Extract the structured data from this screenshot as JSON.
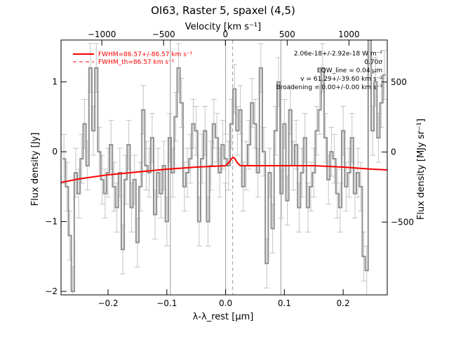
{
  "chart_data": {
    "type": "line",
    "title": "OI63, Raster 5, spaxel (4,5)",
    "xlabel": "λ-λ_rest [μm]",
    "ylabel": "Flux density [Jy]",
    "top_xlabel": "Velocity [km s⁻¹]",
    "right_ylabel": "Flux density [MJy sr⁻¹]",
    "xlim": [
      -0.28,
      0.275
    ],
    "ylim": [
      -2.05,
      1.6
    ],
    "top_xlim": [
      -1330,
      1310
    ],
    "right_ylim": [
      -1020,
      800
    ],
    "x_ticks": [
      -0.2,
      -0.1,
      0.0,
      0.1,
      0.2
    ],
    "x_tick_labels": [
      "−0.2",
      "−0.1",
      "0.0",
      "0.1",
      "0.2"
    ],
    "y_ticks": [
      -2,
      -1,
      0,
      1
    ],
    "y_tick_labels": [
      "−2",
      "−1",
      "0",
      "1"
    ],
    "top_ticks": [
      -1000,
      -500,
      0,
      500,
      1000
    ],
    "top_tick_labels": [
      "−1000",
      "−500",
      "0",
      "500",
      "1000"
    ],
    "right_ticks": [
      -500,
      0,
      500
    ],
    "right_tick_labels": [
      "−500",
      "0",
      "500"
    ],
    "vertical_lines": [
      {
        "x": -0.094,
        "style": "solid"
      },
      {
        "x": 0.0,
        "style": "solid"
      },
      {
        "x": 0.094,
        "style": "solid"
      },
      {
        "x": 0.012,
        "style": "dashed"
      }
    ],
    "legend": [
      {
        "label": "FWHM=86.57+/-86.57 km s⁻¹",
        "style": "solid",
        "color": "#ff0000"
      },
      {
        "label": "FWHM_th=86.57 km s⁻¹",
        "style": "dashed",
        "color": "#ff0000"
      }
    ],
    "annotations": [
      "2.06e-18+/-2.92e-18 W m⁻²",
      "0.70σ",
      "EQW_line = 0.04 μm",
      "v = 61.29+/-39.60 km s⁻¹",
      "Broadening = 0.00+/-0.00 km s⁻¹"
    ],
    "series": [
      {
        "style": "steps",
        "color": "#909090",
        "x": [
          -0.275,
          -0.27,
          -0.265,
          -0.26,
          -0.255,
          -0.25,
          -0.245,
          -0.24,
          -0.235,
          -0.23,
          -0.225,
          -0.22,
          -0.215,
          -0.21,
          -0.205,
          -0.2,
          -0.195,
          -0.19,
          -0.185,
          -0.18,
          -0.175,
          -0.17,
          -0.165,
          -0.16,
          -0.155,
          -0.15,
          -0.145,
          -0.14,
          -0.135,
          -0.13,
          -0.125,
          -0.12,
          -0.115,
          -0.11,
          -0.105,
          -0.1,
          -0.095,
          -0.09,
          -0.085,
          -0.08,
          -0.075,
          -0.07,
          -0.065,
          -0.06,
          -0.055,
          -0.05,
          -0.045,
          -0.04,
          -0.035,
          -0.03,
          -0.025,
          -0.02,
          -0.015,
          -0.01,
          -0.005,
          0.0,
          0.005,
          0.01,
          0.015,
          0.02,
          0.025,
          0.03,
          0.035,
          0.04,
          0.045,
          0.05,
          0.055,
          0.06,
          0.065,
          0.07,
          0.075,
          0.08,
          0.085,
          0.09,
          0.095,
          0.1,
          0.105,
          0.11,
          0.115,
          0.12,
          0.125,
          0.13,
          0.135,
          0.14,
          0.145,
          0.15,
          0.155,
          0.16,
          0.165,
          0.17,
          0.175,
          0.18,
          0.185,
          0.19,
          0.195,
          0.2,
          0.205,
          0.21,
          0.215,
          0.22,
          0.225,
          0.23,
          0.235,
          0.24,
          0.245,
          0.25,
          0.255,
          0.26,
          0.265,
          0.27
        ],
        "values": [
          -0.1,
          -0.5,
          -1.2,
          -2.0,
          -0.3,
          -0.6,
          -0.1,
          0.4,
          -0.2,
          1.2,
          0.3,
          1.2,
          0.0,
          -0.4,
          -0.6,
          -0.3,
          0.1,
          -0.5,
          -0.8,
          -0.3,
          -1.4,
          -0.4,
          0.1,
          -0.8,
          -0.4,
          -1.3,
          -0.5,
          0.6,
          -0.2,
          -0.3,
          0.2,
          -0.9,
          -0.3,
          -0.6,
          -0.2,
          -1.0,
          0.2,
          -0.3,
          0.5,
          1.2,
          0.7,
          -0.5,
          -0.3,
          -0.1,
          0.4,
          0.3,
          -1.0,
          -0.1,
          0.3,
          -1.0,
          -0.2,
          0.4,
          0.2,
          -0.3,
          0.1,
          -0.1,
          -0.2,
          0.4,
          0.9,
          0.3,
          0.6,
          -0.5,
          -0.2,
          0.1,
          0.7,
          0.4,
          -0.3,
          1.2,
          0.0,
          -1.6,
          -0.3,
          -1.1,
          0.3,
          1.0,
          -0.6,
          0.4,
          -0.7,
          0.6,
          -0.2,
          0.1,
          -0.8,
          -0.3,
          0.2,
          -0.8,
          -0.5,
          -0.3,
          0.3,
          0.6,
          1.2,
          0.2,
          -0.4,
          0.0,
          -0.1,
          -0.6,
          -0.8,
          0.3,
          -0.5,
          -0.3,
          0.2,
          -0.6,
          -0.3,
          -0.5,
          -1.5,
          -1.7,
          1.6,
          0.3,
          1.0,
          0.2,
          0.7,
          1.1
        ],
        "error": 0.35
      },
      {
        "style": "line",
        "color": "#ff0000",
        "x": [
          -0.28,
          -0.25,
          -0.2,
          -0.15,
          -0.1,
          -0.05,
          0.0,
          0.005,
          0.01,
          0.013,
          0.016,
          0.02,
          0.025,
          0.05,
          0.1,
          0.15,
          0.2,
          0.25,
          0.275
        ],
        "values": [
          -0.44,
          -0.39,
          -0.33,
          -0.29,
          -0.25,
          -0.22,
          -0.2,
          -0.16,
          -0.1,
          -0.08,
          -0.1,
          -0.16,
          -0.2,
          -0.2,
          -0.2,
          -0.2,
          -0.22,
          -0.25,
          -0.26
        ]
      }
    ]
  }
}
